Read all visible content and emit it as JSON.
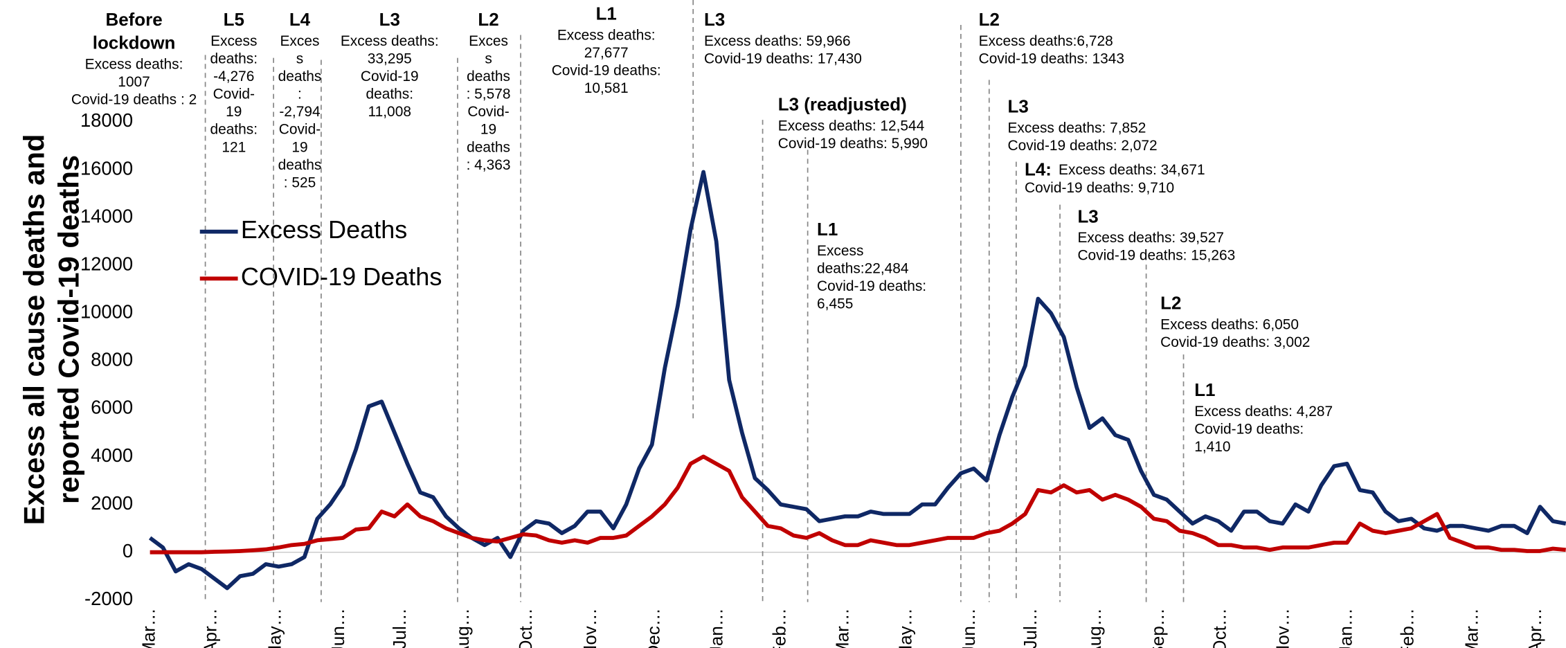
{
  "chart_data": {
    "type": "line",
    "ylabel": [
      "Excess all cause deaths and",
      "reported Covid-19 deaths"
    ],
    "x": [
      0,
      1,
      2,
      3,
      4,
      5,
      6,
      7,
      8,
      9,
      10,
      11,
      12,
      13,
      14,
      15,
      16,
      17,
      18,
      19,
      20,
      21,
      22,
      23,
      24,
      25,
      26,
      27,
      28,
      29,
      30,
      31,
      32,
      33,
      34,
      35,
      36,
      37,
      38,
      39,
      40,
      41,
      42,
      43,
      44,
      45,
      46,
      47,
      48,
      49,
      50,
      51,
      52,
      53,
      54,
      55,
      56,
      57,
      58,
      59,
      60,
      61,
      62,
      63,
      64,
      65,
      66,
      67,
      68,
      69,
      70,
      71,
      72,
      73,
      74,
      75,
      76,
      77,
      78,
      79,
      80,
      81,
      82,
      83,
      84,
      85,
      86,
      87,
      88,
      89,
      90,
      91,
      92,
      93,
      94,
      95,
      96,
      97,
      98,
      99,
      100,
      101,
      102,
      103,
      104,
      105,
      106,
      107,
      108,
      109,
      110
    ],
    "xlim": [
      0,
      110
    ],
    "xticks": [
      {
        "value": 0,
        "label": "Mar…"
      },
      {
        "value": 4.8,
        "label": "Apr…"
      },
      {
        "value": 9.8,
        "label": "May…"
      },
      {
        "value": 14.7,
        "label": "Jun…"
      },
      {
        "value": 19.5,
        "label": "Jul…"
      },
      {
        "value": 24.4,
        "label": "Aug…"
      },
      {
        "value": 29.3,
        "label": "Oct…"
      },
      {
        "value": 34.3,
        "label": "Nov…"
      },
      {
        "value": 39.2,
        "label": "Dec…"
      },
      {
        "value": 44.1,
        "label": "Jan…"
      },
      {
        "value": 49.0,
        "label": "Feb…"
      },
      {
        "value": 53.9,
        "label": "Mar…"
      },
      {
        "value": 58.8,
        "label": "May…"
      },
      {
        "value": 63.7,
        "label": "Jun…"
      },
      {
        "value": 68.5,
        "label": "Jul…"
      },
      {
        "value": 73.5,
        "label": "Aug…"
      },
      {
        "value": 78.4,
        "label": "Sep…"
      },
      {
        "value": 83.2,
        "label": "Oct…"
      },
      {
        "value": 88.1,
        "label": "Nov…"
      },
      {
        "value": 93.0,
        "label": "Jan…"
      },
      {
        "value": 97.8,
        "label": "Feb…"
      },
      {
        "value": 102.8,
        "label": "Mar…"
      },
      {
        "value": 107.7,
        "label": "Apr…"
      }
    ],
    "ylim": [
      -2000,
      18000
    ],
    "yticks": [
      -2000,
      0,
      2000,
      4000,
      6000,
      8000,
      10000,
      12000,
      14000,
      16000,
      18000
    ],
    "zero_line": true,
    "series": [
      {
        "name": "Excess Deaths",
        "color": "#0f2865",
        "values": [
          600,
          200,
          -800,
          -500,
          -700,
          -1100,
          -1500,
          -1000,
          -900,
          -500,
          -600,
          -500,
          -200,
          1400,
          2000,
          2800,
          4300,
          6100,
          6300,
          5000,
          3700,
          2500,
          2300,
          1500,
          1000,
          600,
          300,
          600,
          -200,
          900,
          1300,
          1200,
          800,
          1100,
          1700,
          1700,
          1000,
          2000,
          3500,
          4500,
          7700,
          10300,
          13500,
          15900,
          13000,
          7200,
          5000,
          3100,
          2600,
          2000,
          1900,
          1800,
          1300,
          1400,
          1500,
          1500,
          1700,
          1600,
          1600,
          1600,
          2000,
          2000,
          2700,
          3300,
          3500,
          3000,
          4900,
          6500,
          7800,
          10600,
          10000,
          9000,
          6900,
          5200,
          5600,
          4900,
          4700,
          3400,
          2400,
          2200,
          1700,
          1200,
          1500,
          1300,
          900,
          1700,
          1700,
          1300,
          1200,
          2000,
          1700,
          2800,
          3600,
          3700,
          2600,
          2500,
          1700,
          1300,
          1400,
          1000,
          900,
          1100,
          1100,
          1000,
          900,
          1100,
          1100,
          800,
          1900,
          1300,
          1200
        ]
      },
      {
        "name": "COVID-19 Deaths",
        "color": "#c00000",
        "values": [
          0,
          0,
          0,
          0,
          0,
          20,
          30,
          50,
          80,
          120,
          200,
          300,
          350,
          500,
          550,
          600,
          950,
          1000,
          1700,
          1500,
          2000,
          1500,
          1300,
          1000,
          800,
          600,
          500,
          450,
          600,
          750,
          700,
          500,
          400,
          500,
          400,
          600,
          600,
          700,
          1100,
          1500,
          2000,
          2700,
          3700,
          4000,
          3700,
          3400,
          2300,
          1700,
          1100,
          1000,
          700,
          600,
          800,
          500,
          300,
          300,
          500,
          400,
          300,
          300,
          400,
          500,
          600,
          600,
          600,
          800,
          900,
          1200,
          1600,
          2600,
          2500,
          2800,
          2500,
          2600,
          2200,
          2400,
          2200,
          1900,
          1400,
          1300,
          900,
          800,
          600,
          300,
          300,
          200,
          200,
          100,
          200,
          200,
          200,
          300,
          400,
          400,
          1200,
          900,
          800,
          900,
          1000,
          1300,
          1600,
          600,
          400,
          200,
          200,
          100,
          100,
          50,
          50,
          150,
          100
        ]
      }
    ],
    "period_boundaries": [
      4.3,
      9.6,
      13.3,
      23.9,
      28.8,
      42.2,
      47.6,
      51.1,
      63.0,
      65.2,
      67.3,
      70.7,
      77.4,
      80.3
    ],
    "annotations": [
      {
        "title": [
          "Before",
          "lockdown"
        ],
        "lines": [
          "Excess deaths:",
          "1007",
          "Covid-19 deaths : 2"
        ]
      },
      {
        "title": [
          "L5"
        ],
        "lines": [
          "Excess",
          "deaths:",
          "-4,276",
          "Covid-",
          "19",
          "deaths:",
          "121"
        ]
      },
      {
        "title": [
          "L4"
        ],
        "lines": [
          "Exces",
          "s",
          "deaths",
          ":",
          "-2,794",
          "Covid-",
          "19",
          "deaths",
          ": 525"
        ]
      },
      {
        "title": [
          "L3"
        ],
        "lines": [
          "Excess deaths:",
          "33,295",
          "Covid-19",
          "deaths:",
          "11,008"
        ]
      },
      {
        "title": [
          "L2"
        ],
        "lines": [
          "Exces",
          "s",
          "deaths",
          ": 5,578",
          "Covid-",
          "19",
          "deaths",
          ": 4,363"
        ]
      },
      {
        "title": [
          "L1"
        ],
        "lines": [
          "Excess deaths:",
          "27,677",
          "Covid-19 deaths:",
          "10,581"
        ]
      },
      {
        "title": [
          "L3"
        ],
        "lines": [
          "Excess deaths: 59,966",
          "Covid-19 deaths: 17,430"
        ]
      },
      {
        "title": [
          "L3 (readjusted)"
        ],
        "lines": [
          "Excess deaths: 12,544",
          "Covid-19 deaths: 5,990"
        ]
      },
      {
        "title": [
          "L1"
        ],
        "lines": [
          "Excess",
          "deaths:22,484",
          "Covid-19 deaths:",
          "6,455"
        ]
      },
      {
        "title": [
          "L2"
        ],
        "lines": [
          "Excess deaths:6,728",
          "Covid-19 deaths: 1343"
        ]
      },
      {
        "title": [
          "L3"
        ],
        "lines": [
          "Excess deaths: 7,852",
          "Covid-19 deaths: 2,072"
        ]
      },
      {
        "title": [
          "L4:"
        ],
        "lines": [
          "Excess deaths: 34,671",
          "Covid-19 deaths: 9,710"
        ]
      },
      {
        "title": [
          "L3"
        ],
        "lines": [
          "Excess deaths: 39,527",
          "Covid-19 deaths: 15,263"
        ]
      },
      {
        "title": [
          "L2"
        ],
        "lines": [
          "Excess deaths: 6,050",
          "Covid-19 deaths: 3,002"
        ]
      },
      {
        "title": [
          "L1"
        ],
        "lines": [
          "Excess deaths: 4,287",
          "Covid-19 deaths:",
          "1,410"
        ]
      }
    ]
  }
}
